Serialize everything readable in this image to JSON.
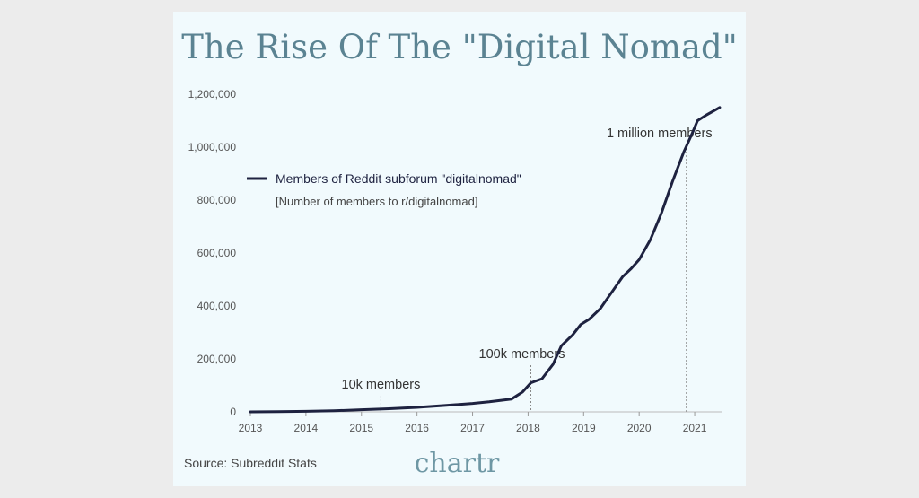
{
  "colors": {
    "line": "#1e2240",
    "title": "#5b8392",
    "brand": "#6e97a4",
    "background": "#f1fafd"
  },
  "chart_data": {
    "type": "line",
    "title": "The Rise Of The \"Digital Nomad\"",
    "xlabel": "",
    "ylabel": "",
    "xlim": [
      2013,
      2021.5
    ],
    "ylim": [
      0,
      1200000
    ],
    "x_ticks": [
      "2013",
      "2014",
      "2015",
      "2016",
      "2017",
      "2018",
      "2019",
      "2020",
      "2021"
    ],
    "y_ticks": [
      {
        "value": 0,
        "label": "0"
      },
      {
        "value": 200000,
        "label": "200,000"
      },
      {
        "value": 400000,
        "label": "400,000"
      },
      {
        "value": 600000,
        "label": "600,000"
      },
      {
        "value": 800000,
        "label": "800,000"
      },
      {
        "value": 1000000,
        "label": "1,000,000"
      },
      {
        "value": 1200000,
        "label": "1,200,000"
      }
    ],
    "legend": {
      "label": "Members of Reddit subforum \"digitalnomad\"",
      "sublabel": "[Number of members to r/digitalnomad]",
      "placement": "top-left"
    },
    "series": [
      {
        "name": "Members of Reddit subforum \"digitalnomad\"",
        "x": [
          2013,
          2013.5,
          2014,
          2014.5,
          2015,
          2015.5,
          2016,
          2016.5,
          2017,
          2017.3,
          2017.7,
          2017.9,
          2018.05,
          2018.25,
          2018.45,
          2018.6,
          2018.8,
          2018.95,
          2019.1,
          2019.3,
          2019.5,
          2019.7,
          2019.85,
          2020,
          2020.2,
          2020.4,
          2020.6,
          2020.8,
          2020.95,
          2021.05,
          2021.2,
          2021.45
        ],
        "values": [
          0,
          1000,
          2000,
          4000,
          8000,
          12000,
          17000,
          24000,
          32000,
          38000,
          48000,
          75000,
          110000,
          125000,
          180000,
          250000,
          290000,
          330000,
          350000,
          390000,
          450000,
          510000,
          540000,
          575000,
          650000,
          750000,
          870000,
          980000,
          1050000,
          1100000,
          1120000,
          1150000
        ]
      }
    ],
    "annotations": [
      {
        "text": "10k members",
        "x": 2015.35
      },
      {
        "text": "100k members",
        "x": 2018.05
      },
      {
        "text": "1 million members",
        "x": 2020.85
      }
    ]
  },
  "footer": {
    "source": "Source: Subreddit Stats",
    "brand": "chartr"
  }
}
